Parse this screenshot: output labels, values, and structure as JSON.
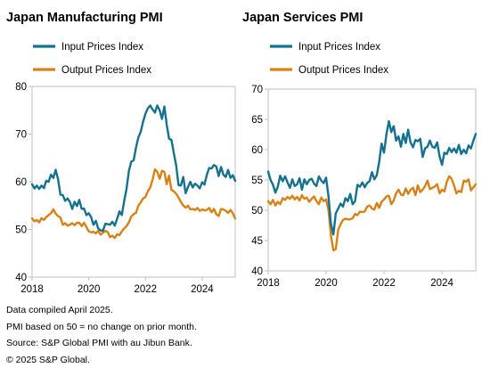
{
  "colors": {
    "input": "#14718f",
    "output": "#d88115",
    "axis": "#bfbfbf",
    "text": "#000000"
  },
  "notes": [
    "Data compiled April 2025.",
    "PMI based on 50 = no change on prior month.",
    "Source: S&P Global PMI with au Jibun Bank.",
    "© 2025 S&P Global."
  ],
  "chart_data": [
    {
      "type": "line",
      "title": "Japan Manufacturing PMI",
      "xlim": [
        "2018-01",
        "2025-03"
      ],
      "ylim": [
        40,
        80
      ],
      "y_ticks": [
        40,
        50,
        60,
        70,
        80
      ],
      "x_ticks": [
        "2018",
        "2020",
        "2022",
        "2024"
      ],
      "legend_position": "top-left",
      "series": [
        {
          "name": "Input Prices Index",
          "color": "#14718f",
          "x": [
            "2018-01",
            "2018-02",
            "2018-03",
            "2018-04",
            "2018-05",
            "2018-06",
            "2018-07",
            "2018-08",
            "2018-09",
            "2018-10",
            "2018-11",
            "2018-12",
            "2019-01",
            "2019-02",
            "2019-03",
            "2019-04",
            "2019-05",
            "2019-06",
            "2019-07",
            "2019-08",
            "2019-09",
            "2019-10",
            "2019-11",
            "2019-12",
            "2020-01",
            "2020-02",
            "2020-03",
            "2020-04",
            "2020-05",
            "2020-06",
            "2020-07",
            "2020-08",
            "2020-09",
            "2020-10",
            "2020-11",
            "2020-12",
            "2021-01",
            "2021-02",
            "2021-03",
            "2021-04",
            "2021-05",
            "2021-06",
            "2021-07",
            "2021-08",
            "2021-09",
            "2021-10",
            "2021-11",
            "2021-12",
            "2022-01",
            "2022-02",
            "2022-03",
            "2022-04",
            "2022-05",
            "2022-06",
            "2022-07",
            "2022-08",
            "2022-09",
            "2022-10",
            "2022-11",
            "2022-12",
            "2023-01",
            "2023-02",
            "2023-03",
            "2023-04",
            "2023-05",
            "2023-06",
            "2023-07",
            "2023-08",
            "2023-09",
            "2023-10",
            "2023-11",
            "2023-12",
            "2024-01",
            "2024-02",
            "2024-03",
            "2024-04",
            "2024-05",
            "2024-06",
            "2024-07",
            "2024-08",
            "2024-09",
            "2024-10",
            "2024-11",
            "2024-12",
            "2025-01",
            "2025-02",
            "2025-03"
          ],
          "values": [
            59.5,
            58.6,
            59.2,
            58.5,
            59.2,
            58.7,
            60.2,
            60.0,
            61.5,
            60.8,
            62.5,
            60.5,
            57.3,
            57.2,
            56.0,
            56.5,
            55.8,
            54.3,
            55.8,
            54.9,
            56.2,
            54.3,
            54.4,
            53.0,
            53.4,
            52.6,
            51.0,
            51.8,
            50.2,
            49.8,
            49.7,
            51.2,
            51.1,
            51.0,
            51.6,
            50.8,
            52.2,
            53.8,
            53.0,
            56.0,
            58.5,
            62.3,
            64.2,
            64.5,
            67.2,
            69.3,
            70.5,
            72.6,
            74.3,
            75.4,
            76.0,
            75.2,
            74.5,
            76.0,
            75.0,
            73.2,
            75.8,
            72.0,
            69.0,
            68.8,
            66.0,
            63.5,
            59.3,
            59.2,
            61.0,
            57.6,
            58.9,
            60.0,
            58.8,
            59.6,
            59.2,
            58.6,
            59.9,
            59.4,
            61.5,
            62.9,
            62.8,
            63.5,
            63.2,
            61.2,
            63.1,
            61.5,
            61.0,
            62.5,
            60.8,
            61.4,
            60.2
          ]
        },
        {
          "name": "Output Prices Index",
          "color": "#d88115",
          "x": [
            "2018-01",
            "2018-02",
            "2018-03",
            "2018-04",
            "2018-05",
            "2018-06",
            "2018-07",
            "2018-08",
            "2018-09",
            "2018-10",
            "2018-11",
            "2018-12",
            "2019-01",
            "2019-02",
            "2019-03",
            "2019-04",
            "2019-05",
            "2019-06",
            "2019-07",
            "2019-08",
            "2019-09",
            "2019-10",
            "2019-11",
            "2019-12",
            "2020-01",
            "2020-02",
            "2020-03",
            "2020-04",
            "2020-05",
            "2020-06",
            "2020-07",
            "2020-08",
            "2020-09",
            "2020-10",
            "2020-11",
            "2020-12",
            "2021-01",
            "2021-02",
            "2021-03",
            "2021-04",
            "2021-05",
            "2021-06",
            "2021-07",
            "2021-08",
            "2021-09",
            "2021-10",
            "2021-11",
            "2021-12",
            "2022-01",
            "2022-02",
            "2022-03",
            "2022-04",
            "2022-05",
            "2022-06",
            "2022-07",
            "2022-08",
            "2022-09",
            "2022-10",
            "2022-11",
            "2022-12",
            "2023-01",
            "2023-02",
            "2023-03",
            "2023-04",
            "2023-05",
            "2023-06",
            "2023-07",
            "2023-08",
            "2023-09",
            "2023-10",
            "2023-11",
            "2023-12",
            "2024-01",
            "2024-02",
            "2024-03",
            "2024-04",
            "2024-05",
            "2024-06",
            "2024-07",
            "2024-08",
            "2024-09",
            "2024-10",
            "2024-11",
            "2024-12",
            "2025-01",
            "2025-02",
            "2025-03"
          ],
          "values": [
            52.3,
            51.7,
            52.0,
            51.5,
            52.4,
            52.0,
            52.6,
            53.0,
            53.4,
            54.2,
            53.3,
            52.8,
            52.5,
            51.0,
            51.3,
            50.8,
            51.0,
            51.3,
            50.9,
            51.4,
            51.4,
            50.7,
            51.4,
            50.5,
            49.6,
            49.4,
            49.5,
            49.2,
            49.7,
            48.9,
            49.3,
            49.7,
            49.5,
            48.4,
            48.7,
            48.2,
            49.0,
            48.8,
            49.6,
            50.2,
            50.7,
            51.5,
            52.7,
            53.2,
            53.5,
            55.0,
            55.7,
            56.5,
            56.8,
            58.0,
            58.8,
            60.4,
            62.6,
            62.1,
            60.6,
            62.3,
            62.1,
            59.5,
            61.3,
            58.3,
            58.0,
            57.5,
            56.7,
            55.8,
            55.0,
            54.6,
            55.0,
            54.2,
            54.3,
            54.1,
            54.5,
            53.9,
            54.2,
            54.0,
            54.1,
            54.5,
            53.6,
            54.3,
            53.2,
            52.8,
            54.3,
            54.2,
            53.9,
            53.5,
            54.1,
            53.4,
            52.3
          ]
        }
      ]
    },
    {
      "type": "line",
      "title": "Japan Services PMI",
      "xlim": [
        "2018-01",
        "2025-03"
      ],
      "ylim": [
        40,
        70
      ],
      "y_ticks": [
        40,
        45,
        50,
        55,
        60,
        65,
        70
      ],
      "x_ticks": [
        "2018",
        "2020",
        "2022",
        "2024"
      ],
      "legend_position": "top-left",
      "series": [
        {
          "name": "Input Prices Index",
          "color": "#14718f",
          "x": [
            "2018-01",
            "2018-02",
            "2018-03",
            "2018-04",
            "2018-05",
            "2018-06",
            "2018-07",
            "2018-08",
            "2018-09",
            "2018-10",
            "2018-11",
            "2018-12",
            "2019-01",
            "2019-02",
            "2019-03",
            "2019-04",
            "2019-05",
            "2019-06",
            "2019-07",
            "2019-08",
            "2019-09",
            "2019-10",
            "2019-11",
            "2019-12",
            "2020-01",
            "2020-02",
            "2020-03",
            "2020-04",
            "2020-05",
            "2020-06",
            "2020-07",
            "2020-08",
            "2020-09",
            "2020-10",
            "2020-11",
            "2020-12",
            "2021-01",
            "2021-02",
            "2021-03",
            "2021-04",
            "2021-05",
            "2021-06",
            "2021-07",
            "2021-08",
            "2021-09",
            "2021-10",
            "2021-11",
            "2021-12",
            "2022-01",
            "2022-02",
            "2022-03",
            "2022-04",
            "2022-05",
            "2022-06",
            "2022-07",
            "2022-08",
            "2022-09",
            "2022-10",
            "2022-11",
            "2022-12",
            "2023-01",
            "2023-02",
            "2023-03",
            "2023-04",
            "2023-05",
            "2023-06",
            "2023-07",
            "2023-08",
            "2023-09",
            "2023-10",
            "2023-11",
            "2023-12",
            "2024-01",
            "2024-02",
            "2024-03",
            "2024-04",
            "2024-05",
            "2024-06",
            "2024-07",
            "2024-08",
            "2024-09",
            "2024-10",
            "2024-11",
            "2024-12",
            "2025-01",
            "2025-02",
            "2025-03"
          ],
          "values": [
            56.4,
            55.0,
            54.2,
            52.9,
            53.9,
            55.7,
            54.8,
            55.6,
            54.6,
            53.7,
            55.1,
            54.0,
            54.3,
            55.3,
            53.4,
            55.1,
            54.3,
            55.0,
            55.2,
            54.4,
            54.0,
            55.6,
            54.9,
            54.5,
            55.4,
            52.3,
            47.8,
            46.0,
            49.5,
            50.3,
            51.1,
            50.6,
            52.0,
            51.5,
            52.7,
            51.0,
            51.5,
            54.2,
            53.9,
            54.6,
            53.8,
            54.5,
            54.8,
            56.3,
            55.1,
            55.8,
            58.0,
            61.0,
            59.5,
            62.6,
            64.7,
            62.9,
            63.9,
            61.5,
            62.2,
            60.5,
            62.6,
            61.1,
            63.3,
            61.2,
            60.4,
            61.6,
            61.4,
            61.8,
            58.8,
            60.2,
            60.5,
            61.5,
            60.5,
            60.3,
            61.2,
            58.9,
            57.5,
            59.5,
            59.3,
            60.3,
            59.6,
            60.2,
            59.5,
            60.8,
            59.3,
            60.0,
            59.4,
            60.7,
            60.2,
            61.5,
            62.6
          ]
        },
        {
          "name": "Output Prices Index",
          "color": "#d88115",
          "x": [
            "2018-01",
            "2018-02",
            "2018-03",
            "2018-04",
            "2018-05",
            "2018-06",
            "2018-07",
            "2018-08",
            "2018-09",
            "2018-10",
            "2018-11",
            "2018-12",
            "2019-01",
            "2019-02",
            "2019-03",
            "2019-04",
            "2019-05",
            "2019-06",
            "2019-07",
            "2019-08",
            "2019-09",
            "2019-10",
            "2019-11",
            "2019-12",
            "2020-01",
            "2020-02",
            "2020-03",
            "2020-04",
            "2020-05",
            "2020-06",
            "2020-07",
            "2020-08",
            "2020-09",
            "2020-10",
            "2020-11",
            "2020-12",
            "2021-01",
            "2021-02",
            "2021-03",
            "2021-04",
            "2021-05",
            "2021-06",
            "2021-07",
            "2021-08",
            "2021-09",
            "2021-10",
            "2021-11",
            "2021-12",
            "2022-01",
            "2022-02",
            "2022-03",
            "2022-04",
            "2022-05",
            "2022-06",
            "2022-07",
            "2022-08",
            "2022-09",
            "2022-10",
            "2022-11",
            "2022-12",
            "2023-01",
            "2023-02",
            "2023-03",
            "2023-04",
            "2023-05",
            "2023-06",
            "2023-07",
            "2023-08",
            "2023-09",
            "2023-10",
            "2023-11",
            "2023-12",
            "2024-01",
            "2024-02",
            "2024-03",
            "2024-04",
            "2024-05",
            "2024-06",
            "2024-07",
            "2024-08",
            "2024-09",
            "2024-10",
            "2024-11",
            "2024-12",
            "2025-01",
            "2025-02",
            "2025-03"
          ],
          "values": [
            51.5,
            51.0,
            51.7,
            50.8,
            51.4,
            51.0,
            52.0,
            51.7,
            52.2,
            51.9,
            52.4,
            51.8,
            52.2,
            51.6,
            52.5,
            51.9,
            52.1,
            51.4,
            51.9,
            52.3,
            51.5,
            51.0,
            52.1,
            51.5,
            51.8,
            50.0,
            45.9,
            43.4,
            43.6,
            46.8,
            47.7,
            48.4,
            48.6,
            48.5,
            48.5,
            48.7,
            49.4,
            49.2,
            49.8,
            49.7,
            49.8,
            50.6,
            50.8,
            50.3,
            50.1,
            51.2,
            50.4,
            51.4,
            51.8,
            52.3,
            52.4,
            51.0,
            51.6,
            52.8,
            53.4,
            52.6,
            52.5,
            53.6,
            52.7,
            53.4,
            53.7,
            52.5,
            54.1,
            53.0,
            53.4,
            54.0,
            54.9,
            53.5,
            53.7,
            53.9,
            54.3,
            52.8,
            53.4,
            53.1,
            54.7,
            55.6,
            55.2,
            54.1,
            52.8,
            53.2,
            53.0,
            54.9,
            54.7,
            55.1,
            53.3,
            53.8,
            54.3
          ]
        }
      ]
    }
  ]
}
